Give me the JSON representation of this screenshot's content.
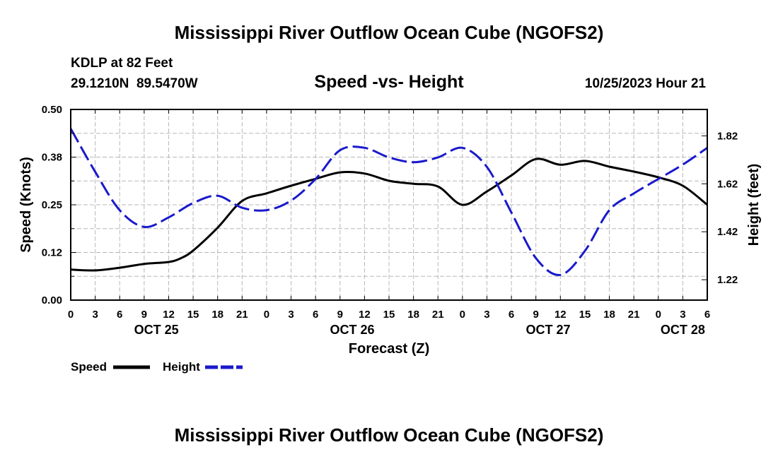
{
  "chart_data": {
    "type": "line",
    "title": "Mississippi River Outflow Ocean Cube (NGOFS2)",
    "footer_title": "Mississippi River Outflow Ocean Cube (NGOFS2)",
    "station": "KDLP at 82 Feet",
    "coordinates": "29.1210N  89.5470W",
    "subtitle": "Speed -vs- Height",
    "timestamp": "10/25/2023 Hour 21",
    "xlabel": "Forecast (Z)",
    "ylabel_left": "Speed (Knots)",
    "ylabel_right": "Height (feet)",
    "x_ticks": [
      "0",
      "3",
      "6",
      "9",
      "12",
      "15",
      "18",
      "21",
      "0",
      "3",
      "6",
      "9",
      "12",
      "15",
      "18",
      "21",
      "0",
      "3",
      "6",
      "9",
      "12",
      "15",
      "18",
      "21",
      "0",
      "3",
      "6"
    ],
    "date_labels": [
      {
        "label": "OCT 25",
        "tick_index": 3.5
      },
      {
        "label": "OCT 26",
        "tick_index": 11.5
      },
      {
        "label": "OCT 27",
        "tick_index": 19.5
      },
      {
        "label": "OCT 28",
        "tick_index": 25
      }
    ],
    "x_range": [
      0,
      26
    ],
    "y_left_ticks": [
      "0.00",
      "0.12",
      "0.25",
      "0.38",
      "0.50"
    ],
    "y_left_range": [
      0,
      0.5
    ],
    "y_right_ticks": [
      "1.22",
      "1.42",
      "1.62",
      "1.82"
    ],
    "y_right_tick_values": [
      1.22,
      1.42,
      1.62,
      1.82
    ],
    "y_right_range": [
      1.135,
      1.93
    ],
    "grid": true,
    "series": [
      {
        "name": "Speed",
        "axis": "left",
        "color": "#000000",
        "dash": "solid",
        "x": [
          0,
          1,
          2,
          3,
          4,
          4.5,
          5,
          6,
          7,
          8,
          9,
          10,
          11,
          12,
          13,
          14,
          15,
          16,
          17,
          18,
          19,
          20,
          21,
          22,
          23,
          24,
          25,
          26
        ],
        "values": [
          0.08,
          0.078,
          0.085,
          0.095,
          0.1,
          0.11,
          0.13,
          0.19,
          0.26,
          0.28,
          0.3,
          0.318,
          0.335,
          0.332,
          0.313,
          0.305,
          0.298,
          0.25,
          0.285,
          0.327,
          0.37,
          0.355,
          0.365,
          0.35,
          0.337,
          0.322,
          0.3,
          0.25
        ]
      },
      {
        "name": "Height",
        "axis": "right",
        "color": "#1a1acc",
        "dash": "dashed",
        "x": [
          0,
          1,
          2,
          3,
          4,
          5,
          6,
          7,
          8,
          9,
          10,
          11,
          12,
          13,
          14,
          15,
          16,
          17,
          18,
          19,
          20,
          21,
          22,
          23,
          24,
          25,
          26
        ],
        "values": [
          1.85,
          1.67,
          1.51,
          1.44,
          1.48,
          1.54,
          1.57,
          1.52,
          1.51,
          1.55,
          1.64,
          1.76,
          1.77,
          1.73,
          1.71,
          1.73,
          1.77,
          1.69,
          1.5,
          1.31,
          1.24,
          1.34,
          1.51,
          1.58,
          1.64,
          1.7,
          1.77
        ]
      }
    ],
    "legend": [
      {
        "label": "Speed",
        "color": "#000000",
        "dash": "solid"
      },
      {
        "label": "Height",
        "color": "#1a1acc",
        "dash": "dashed"
      }
    ]
  }
}
